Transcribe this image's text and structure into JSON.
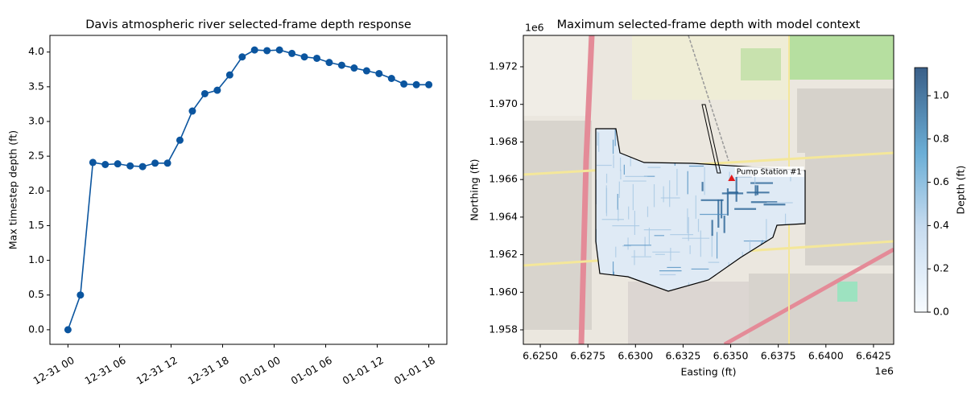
{
  "chart_data": [
    {
      "type": "line",
      "title": "Davis atmospheric river selected-frame depth response",
      "y_label": "Max timestep depth (ft)",
      "x": [
        0,
        1.45,
        2.9,
        4.34,
        5.79,
        7.24,
        8.69,
        10.14,
        11.59,
        13.03,
        14.48,
        15.93,
        17.38,
        18.83,
        20.28,
        21.72,
        23.17,
        24.62,
        26.07,
        27.52,
        28.97,
        30.41,
        31.86,
        33.31,
        34.76,
        36.21,
        37.66,
        39.1,
        40.55,
        42
      ],
      "values": [
        0,
        0.5,
        2.41,
        2.38,
        2.39,
        2.36,
        2.35,
        2.4,
        2.4,
        2.73,
        3.15,
        3.4,
        3.45,
        3.67,
        3.93,
        4.03,
        4.02,
        4.03,
        3.98,
        3.93,
        3.91,
        3.85,
        3.81,
        3.77,
        3.73,
        3.69,
        3.62,
        3.54,
        3.53,
        3.53
      ],
      "color": "#0b559f",
      "xlim": [
        -2.1,
        44.1
      ],
      "xticks": [
        {
          "value": 0,
          "label": "12-31 00"
        },
        {
          "value": 6,
          "label": "12-31 06"
        },
        {
          "value": 12,
          "label": "12-31 12"
        },
        {
          "value": 18,
          "label": "12-31 18"
        },
        {
          "value": 24,
          "label": "01-01 00"
        },
        {
          "value": 30,
          "label": "01-01 06"
        },
        {
          "value": 36,
          "label": "01-01 12"
        },
        {
          "value": 42,
          "label": "01-01 18"
        }
      ],
      "ylim": [
        -0.21,
        4.24
      ],
      "yticks": [
        {
          "value": 0,
          "label": "0.0"
        },
        {
          "value": 0.5,
          "label": "0.5"
        },
        {
          "value": 1,
          "label": "1.0"
        },
        {
          "value": 1.5,
          "label": "1.5"
        },
        {
          "value": 2,
          "label": "2.0"
        },
        {
          "value": 2.5,
          "label": "2.5"
        },
        {
          "value": 3,
          "label": "3.0"
        },
        {
          "value": 3.5,
          "label": "3.5"
        },
        {
          "value": 4,
          "label": "4.0"
        }
      ]
    },
    {
      "type": "map",
      "title": "Maximum selected-frame depth with model context",
      "x_label": "Easting (ft)",
      "y_label": "Northing (ft)",
      "x_offset": "1e6",
      "y_offset": "1e6",
      "xlim": [
        6.62411,
        6.64356
      ],
      "xticks": [
        {
          "value": 6.625,
          "label": "6.6250"
        },
        {
          "value": 6.6275,
          "label": "6.6275"
        },
        {
          "value": 6.63,
          "label": "6.6300"
        },
        {
          "value": 6.6325,
          "label": "6.6325"
        },
        {
          "value": 6.635,
          "label": "6.6350"
        },
        {
          "value": 6.6375,
          "label": "6.6375"
        },
        {
          "value": 6.64,
          "label": "6.6400"
        },
        {
          "value": 6.6425,
          "label": "6.6425"
        }
      ],
      "ylim": [
        1.95723,
        1.97367
      ],
      "yticks": [
        {
          "value": 1.958,
          "label": "1.958"
        },
        {
          "value": 1.96,
          "label": "1.960"
        },
        {
          "value": 1.962,
          "label": "1.962"
        },
        {
          "value": 1.964,
          "label": "1.964"
        },
        {
          "value": 1.966,
          "label": "1.966"
        },
        {
          "value": 1.968,
          "label": "1.968"
        },
        {
          "value": 1.97,
          "label": "1.970"
        },
        {
          "value": 1.972,
          "label": "1.972"
        }
      ],
      "annotation": {
        "label": "Pump Station #1",
        "x": 6.63505,
        "y": 1.96605,
        "color": "#e31a1c"
      },
      "colorbar": {
        "label": "Depth (ft)",
        "clim": [
          0,
          1.13
        ],
        "ticks": [
          {
            "value": 0,
            "label": "0.0"
          },
          {
            "value": 0.2,
            "label": "0.2"
          },
          {
            "value": 0.4,
            "label": "0.4"
          },
          {
            "value": 0.6,
            "label": "0.6"
          },
          {
            "value": 0.8,
            "label": "0.8"
          },
          {
            "value": 1,
            "label": "1.0"
          }
        ]
      }
    }
  ]
}
